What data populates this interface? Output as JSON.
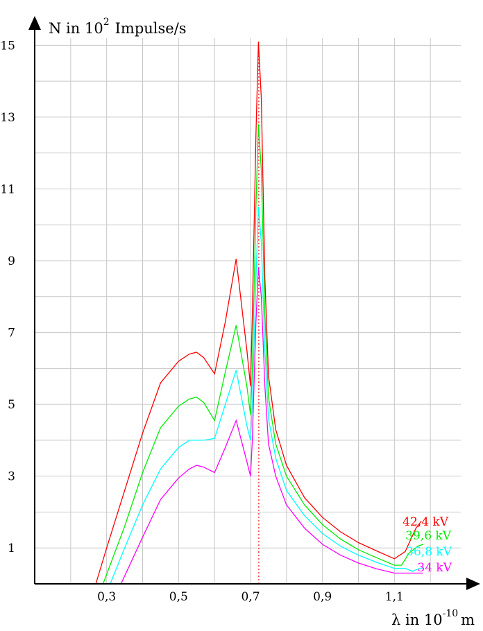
{
  "chart_data": {
    "type": "line",
    "ylabel_pre": "N in 10",
    "ylabel_sup": "2",
    "ylabel_post": "Impulse/s",
    "xlabel_pre": "λ in 10",
    "xlabel_sup": "-10",
    "xlabel_post": "m",
    "xlim": [
      0.1,
      1.3
    ],
    "ylim": [
      0,
      15.2
    ],
    "x_ticks": [
      0.3,
      0.5,
      0.7,
      0.9,
      1.1
    ],
    "x_tick_labels": [
      "0,3",
      "0,5",
      "0,7",
      "0,9",
      "1,1"
    ],
    "y_ticks": [
      1,
      3,
      5,
      7,
      9,
      11,
      13,
      15
    ],
    "y_tick_labels": [
      "1",
      "3",
      "5",
      "7",
      "9",
      "11",
      "13",
      "15"
    ],
    "x_grid_step": 0.1,
    "y_grid_step": 1,
    "grid": true,
    "reference_line": {
      "x": 0.723,
      "color": "#ff0000"
    },
    "series": [
      {
        "name": "42,4 kV",
        "color": "#ff0000",
        "points": [
          [
            0.27,
            0
          ],
          [
            0.3,
            1.0
          ],
          [
            0.35,
            2.6
          ],
          [
            0.4,
            4.2
          ],
          [
            0.45,
            5.6
          ],
          [
            0.5,
            6.2
          ],
          [
            0.53,
            6.4
          ],
          [
            0.55,
            6.45
          ],
          [
            0.57,
            6.3
          ],
          [
            0.6,
            5.85
          ],
          [
            0.63,
            7.3
          ],
          [
            0.66,
            9.05
          ],
          [
            0.69,
            6.5
          ],
          [
            0.7,
            5.5
          ],
          [
            0.705,
            7.5
          ],
          [
            0.715,
            12.5
          ],
          [
            0.722,
            15.1
          ],
          [
            0.73,
            13.5
          ],
          [
            0.74,
            8.5
          ],
          [
            0.75,
            5.8
          ],
          [
            0.77,
            4.3
          ],
          [
            0.8,
            3.3
          ],
          [
            0.85,
            2.4
          ],
          [
            0.9,
            1.85
          ],
          [
            0.95,
            1.45
          ],
          [
            1.0,
            1.15
          ],
          [
            1.05,
            0.92
          ],
          [
            1.1,
            0.7
          ],
          [
            1.13,
            0.9
          ],
          [
            1.16,
            1.55
          ],
          [
            1.175,
            1.75
          ]
        ]
      },
      {
        "name": "39,6 kV",
        "color": "#00ee00",
        "points": [
          [
            0.29,
            0
          ],
          [
            0.35,
            1.6
          ],
          [
            0.4,
            3.1
          ],
          [
            0.45,
            4.35
          ],
          [
            0.5,
            4.95
          ],
          [
            0.53,
            5.15
          ],
          [
            0.55,
            5.2
          ],
          [
            0.57,
            5.05
          ],
          [
            0.6,
            4.55
          ],
          [
            0.63,
            5.9
          ],
          [
            0.66,
            7.2
          ],
          [
            0.69,
            5.5
          ],
          [
            0.7,
            4.7
          ],
          [
            0.705,
            6.0
          ],
          [
            0.715,
            10.5
          ],
          [
            0.722,
            12.8
          ],
          [
            0.73,
            11.5
          ],
          [
            0.74,
            7.5
          ],
          [
            0.75,
            5.2
          ],
          [
            0.77,
            3.9
          ],
          [
            0.8,
            3.0
          ],
          [
            0.85,
            2.2
          ],
          [
            0.9,
            1.65
          ],
          [
            0.95,
            1.25
          ],
          [
            1.0,
            0.95
          ],
          [
            1.05,
            0.73
          ],
          [
            1.1,
            0.52
          ],
          [
            1.12,
            0.52
          ],
          [
            1.14,
            0.85
          ],
          [
            1.165,
            1.05
          ],
          [
            1.18,
            1.1
          ]
        ]
      },
      {
        "name": "36,8 kV",
        "color": "#00ffff",
        "points": [
          [
            0.31,
            0
          ],
          [
            0.35,
            1.0
          ],
          [
            0.4,
            2.2
          ],
          [
            0.45,
            3.2
          ],
          [
            0.5,
            3.8
          ],
          [
            0.53,
            4.0
          ],
          [
            0.55,
            4.0
          ],
          [
            0.57,
            4.0
          ],
          [
            0.6,
            4.05
          ],
          [
            0.63,
            5.0
          ],
          [
            0.66,
            5.95
          ],
          [
            0.69,
            4.4
          ],
          [
            0.7,
            4.0
          ],
          [
            0.705,
            5.0
          ],
          [
            0.715,
            8.5
          ],
          [
            0.722,
            10.5
          ],
          [
            0.73,
            9.5
          ],
          [
            0.74,
            6.5
          ],
          [
            0.75,
            4.6
          ],
          [
            0.77,
            3.5
          ],
          [
            0.8,
            2.6
          ],
          [
            0.85,
            1.9
          ],
          [
            0.9,
            1.4
          ],
          [
            0.95,
            1.05
          ],
          [
            1.0,
            0.8
          ],
          [
            1.05,
            0.6
          ],
          [
            1.1,
            0.43
          ],
          [
            1.13,
            0.43
          ],
          [
            1.15,
            0.35
          ],
          [
            1.17,
            0.43
          ],
          [
            1.18,
            0.45
          ]
        ]
      },
      {
        "name": "34 kV",
        "color": "#ff00ff",
        "points": [
          [
            0.34,
            0
          ],
          [
            0.4,
            1.3
          ],
          [
            0.45,
            2.35
          ],
          [
            0.5,
            2.95
          ],
          [
            0.53,
            3.2
          ],
          [
            0.55,
            3.3
          ],
          [
            0.57,
            3.25
          ],
          [
            0.6,
            3.1
          ],
          [
            0.63,
            3.8
          ],
          [
            0.66,
            4.55
          ],
          [
            0.69,
            3.4
          ],
          [
            0.7,
            3.0
          ],
          [
            0.705,
            4.0
          ],
          [
            0.715,
            7.3
          ],
          [
            0.722,
            8.8
          ],
          [
            0.73,
            8.0
          ],
          [
            0.74,
            5.5
          ],
          [
            0.75,
            3.9
          ],
          [
            0.77,
            3.0
          ],
          [
            0.8,
            2.2
          ],
          [
            0.85,
            1.55
          ],
          [
            0.9,
            1.1
          ],
          [
            0.95,
            0.8
          ],
          [
            1.0,
            0.58
          ],
          [
            1.05,
            0.42
          ],
          [
            1.1,
            0.3
          ],
          [
            1.14,
            0.3
          ],
          [
            1.18,
            0.3
          ]
        ]
      }
    ]
  }
}
